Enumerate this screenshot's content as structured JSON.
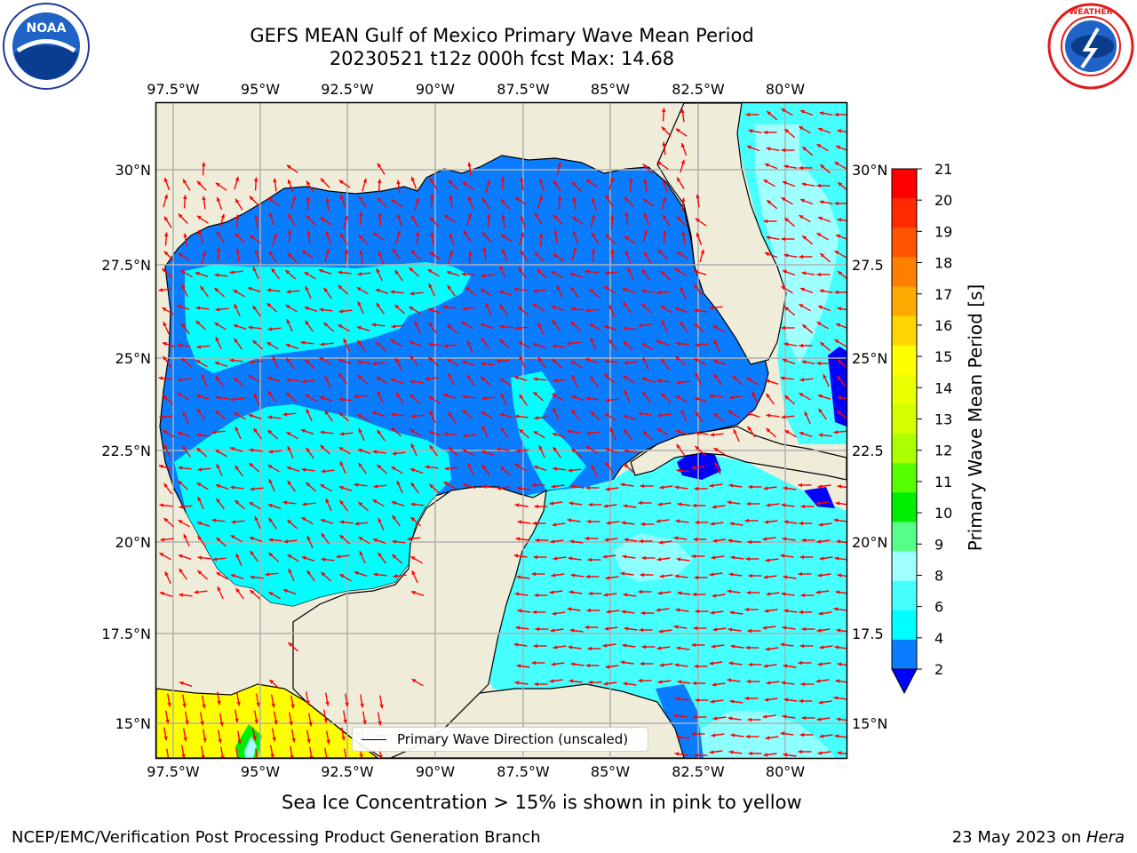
{
  "header": {
    "title_line1": "GEFS MEAN Gulf of Mexico Primary Wave Mean Period",
    "title_line2": "20230521 t12z 000h fcst   Max: 14.68"
  },
  "logos": {
    "left": "noaa-logo",
    "right": "nws-logo"
  },
  "map": {
    "lon_ticks": [
      "97.5°W",
      "95°W",
      "92.5°W",
      "90°W",
      "87.5°W",
      "85°W",
      "82.5°W",
      "80°W"
    ],
    "lat_ticks_left": [
      "30°N",
      "27.5°N",
      "25°N",
      "22.5°N",
      "20°N",
      "17.5°N",
      "15°N"
    ],
    "lat_ticks_right": [
      "30°N",
      "27.5",
      "25°N",
      "22.5",
      "20°N",
      "17.5",
      "15°N"
    ],
    "lon_range": [
      -98,
      -78.2
    ],
    "lat_range": [
      14,
      31.9
    ],
    "colors": {
      "land": "#efedda",
      "ocean_2_4": "#0a7cff",
      "ocean_4_6": "#00ffff",
      "ocean_6_8": "#46ffff",
      "ocean_8_9": "#a0ffff",
      "lowest": "#0000ff",
      "ice": "#ffff00",
      "arrow": "#ff0000",
      "grid": "#b0b0b0"
    }
  },
  "legend": {
    "label": "Primary Wave Direction (unscaled)"
  },
  "colorbar": {
    "label": "Primary Wave Mean Period [s]",
    "ticks": [
      "21",
      "20",
      "19",
      "18",
      "17",
      "16",
      "15",
      "14",
      "13",
      "12",
      "11",
      "10",
      "9",
      "8",
      "6",
      "4",
      "2"
    ],
    "colors": [
      "#ff0000",
      "#ff2a00",
      "#ff5500",
      "#ff8000",
      "#ffaa00",
      "#ffd500",
      "#ffff00",
      "#eaff00",
      "#d4ff00",
      "#aaff00",
      "#55ff00",
      "#00ee00",
      "#55ff88",
      "#a0ffff",
      "#46ffff",
      "#00ffff",
      "#0a7cff"
    ],
    "under_color": "#0000ff"
  },
  "notes": {
    "sea_ice": "Sea Ice Concentration > 15% is shown in pink to yellow"
  },
  "footer": {
    "left": "NCEP/EMC/Verification Post Processing Product Generation Branch",
    "date": "23 May 2023 on ",
    "host": "Hera"
  }
}
